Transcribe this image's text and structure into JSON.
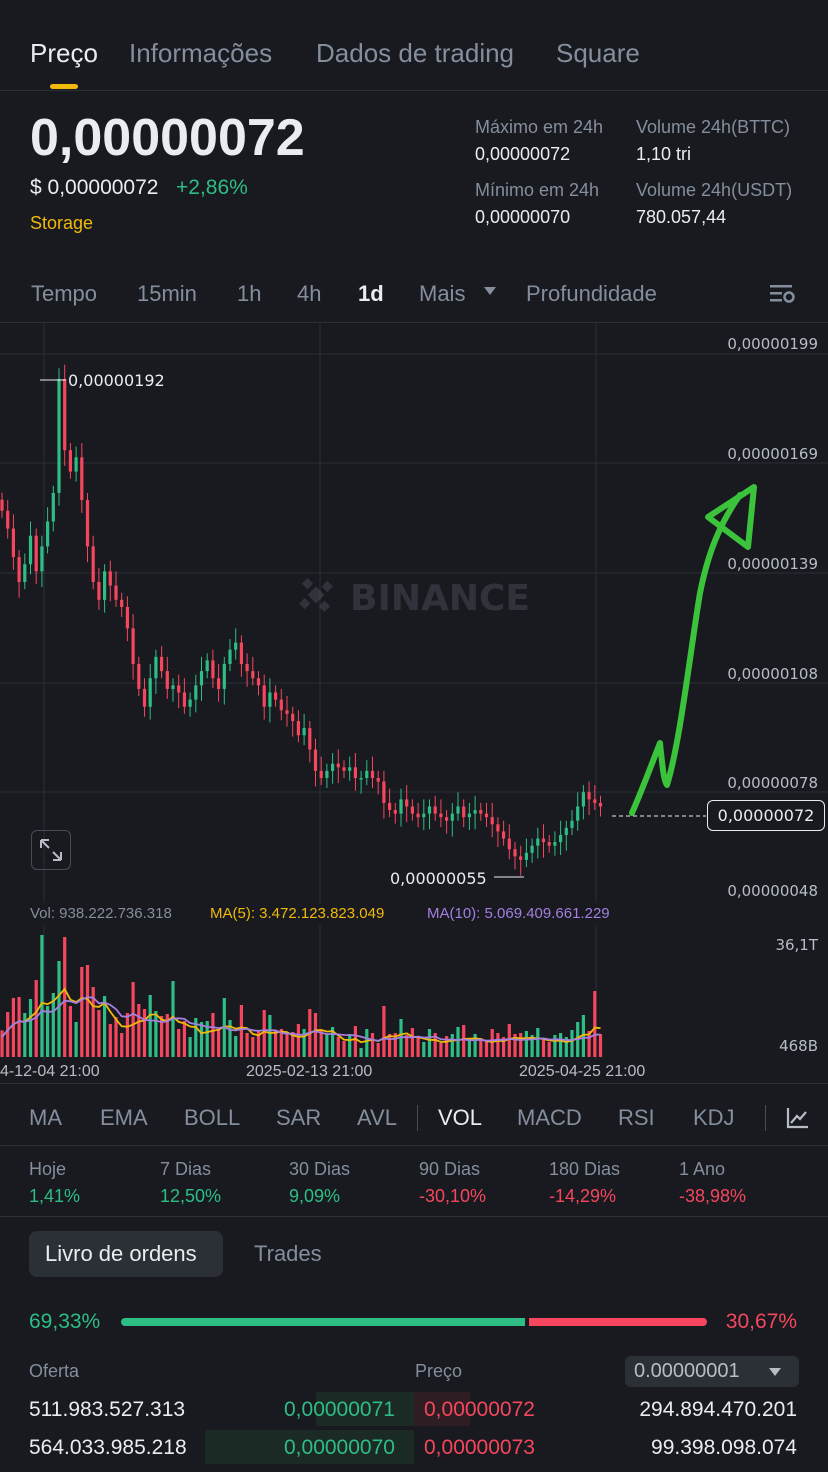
{
  "tabs": [
    "Preço",
    "Informações",
    "Dados de trading",
    "Square"
  ],
  "price": {
    "last": "0,00000072",
    "usd": "$ 0,00000072",
    "change": "+2,86%",
    "tag": "Storage"
  },
  "stats": {
    "high_label": "Máximo em 24h",
    "high_value": "0,00000072",
    "low_label": "Mínimo em 24h",
    "low_value": "0,00000070",
    "vol_base_label": "Volume 24h(BTTC)",
    "vol_base_value": "1,10 tri",
    "vol_quote_label": "Volume 24h(USDT)",
    "vol_quote_value": "780.057,44"
  },
  "timeframes": [
    "Tempo",
    "15min",
    "1h",
    "4h",
    "1d",
    "Mais",
    "Profundidade"
  ],
  "colors": {
    "up": "#2ebd85",
    "down": "#f6465d",
    "accent": "#f0b90b",
    "ma5": "#f0b90b",
    "ma10": "#a47ee0",
    "arrow": "#3cc33c",
    "bg": "#181a20"
  },
  "chart": {
    "watermark": "BINANCE",
    "y_ticks": [
      "0,00000199",
      "0,00000169",
      "0,00000139",
      "0,00000108",
      "0,00000078",
      "0,00000048"
    ],
    "x_ticks": [
      "4-12-04 21:00",
      "2025-02-13 21:00",
      "2025-04-25 21:00"
    ],
    "high_label": "0,00000192",
    "low_label": "0,00000055",
    "current_label": "0,00000072",
    "vol_legend": {
      "vol": "Vol: 938.222.736.318",
      "ma5": "MA(5): 3.472.123.823.049",
      "ma10": "MA(10): 5.069.409.661.229"
    },
    "vol_ticks": [
      "36,1T",
      "468B"
    ]
  },
  "chart_data": {
    "type": "candlestick",
    "y_range": [
      4.8e-07,
      1.99e-06
    ],
    "closes": [
      1.55,
      1.5,
      1.42,
      1.35,
      1.4,
      1.48,
      1.38,
      1.45,
      1.52,
      1.6,
      1.92,
      1.72,
      1.66,
      1.7,
      1.58,
      1.45,
      1.35,
      1.3,
      1.38,
      1.34,
      1.3,
      1.28,
      1.22,
      1.12,
      1.05,
      1.0,
      1.08,
      1.14,
      1.1,
      1.05,
      1.06,
      1.04,
      1.0,
      1.02,
      1.06,
      1.1,
      1.13,
      1.08,
      1.05,
      1.12,
      1.16,
      1.18,
      1.12,
      1.1,
      1.08,
      1.06,
      1.0,
      1.04,
      1.02,
      0.99,
      0.98,
      0.96,
      0.92,
      0.94,
      0.88,
      0.82,
      0.8,
      0.82,
      0.84,
      0.83,
      0.82,
      0.83,
      0.8,
      0.8,
      0.82,
      0.8,
      0.79,
      0.73,
      0.71,
      0.7,
      0.74,
      0.72,
      0.7,
      0.69,
      0.7,
      0.72,
      0.7,
      0.69,
      0.68,
      0.7,
      0.72,
      0.69,
      0.7,
      0.71,
      0.7,
      0.69,
      0.67,
      0.65,
      0.63,
      0.6,
      0.58,
      0.57,
      0.59,
      0.61,
      0.63,
      0.62,
      0.61,
      0.62,
      0.64,
      0.66,
      0.68,
      0.72,
      0.76,
      0.74,
      0.73,
      0.72
    ]
  },
  "indicators": [
    "MA",
    "EMA",
    "BOLL",
    "SAR",
    "AVL",
    "VOL",
    "MACD",
    "RSI",
    "KDJ"
  ],
  "performance": [
    {
      "label": "Hoje",
      "value": "1,41%",
      "dir": "up"
    },
    {
      "label": "7 Dias",
      "value": "12,50%",
      "dir": "up"
    },
    {
      "label": "30 Dias",
      "value": "9,09%",
      "dir": "up"
    },
    {
      "label": "90 Dias",
      "value": "-30,10%",
      "dir": "down"
    },
    {
      "label": "180 Dias",
      "value": "-14,29%",
      "dir": "down"
    },
    {
      "label": "1 Ano",
      "value": "-38,98%",
      "dir": "down"
    }
  ],
  "orderbook": {
    "tabs": [
      "Livro de ordens",
      "Trades"
    ],
    "buy_pct": "69,33%",
    "sell_pct": "30,67%",
    "buy_ratio": 0.6933,
    "col_bid": "Oferta",
    "col_price": "Preço",
    "precision": "0.00000001",
    "rows": [
      {
        "bid_qty": "511.983.527.313",
        "bid_price": "0,00000071",
        "ask_price": "0,00000072",
        "ask_qty": "294.894.470.201"
      },
      {
        "bid_qty": "564.033.985.218",
        "bid_price": "0,00000070",
        "ask_price": "0,00000073",
        "ask_qty": "99.398.098.074"
      }
    ]
  }
}
